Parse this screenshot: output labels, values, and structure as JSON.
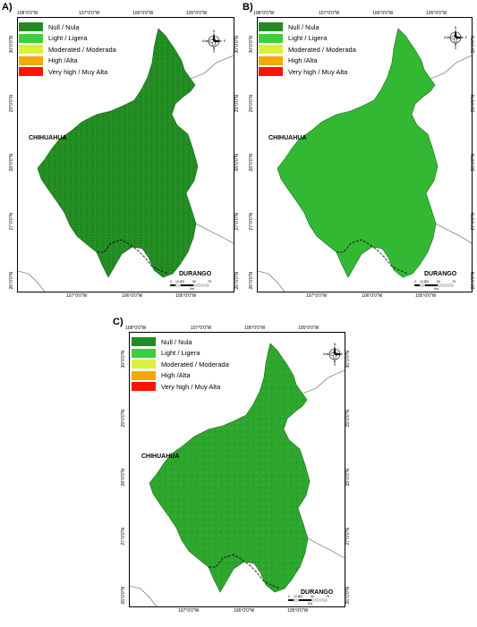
{
  "colors": {
    "null": "#228b22",
    "light": "#3fce3f",
    "moderated": "#d8f23a",
    "high": "#f5a800",
    "very_high": "#ff1200"
  },
  "panels": [
    {
      "label": "A)"
    },
    {
      "label": "B)"
    },
    {
      "label": "C)"
    }
  ],
  "legend": [
    {
      "text": "Null / Nula",
      "color_key": "null"
    },
    {
      "text": "Light / Ligera",
      "color_key": "light"
    },
    {
      "text": "Moderated / Moderada",
      "color_key": "moderated"
    },
    {
      "text": "High /Alta",
      "color_key": "high"
    },
    {
      "text": "Very high / Muy Alta",
      "color_key": "very_high"
    }
  ],
  "top_ticks": [
    "108°0'0\"W",
    "107°0'0\"W",
    "106°0'0\"W",
    "105°0'0\"W"
  ],
  "bottom_ticks": [
    "107°0'0\"W",
    "106°0'0\"W",
    "105°0'0\"W"
  ],
  "lat_ticks": [
    "30°0'0\"N",
    "29°0'0\"N",
    "28°0'0\"N",
    "27°0'0\"N",
    "26°0'0\"N"
  ],
  "states": {
    "north": "CHIHUAHUA",
    "south": "DURANGO"
  },
  "scale": {
    "ticks": [
      "0",
      "12.5",
      "25",
      "50",
      "75"
    ],
    "unit": "Km"
  },
  "compass": {
    "n": "N",
    "s": "S",
    "e": "E",
    "w": "W"
  }
}
